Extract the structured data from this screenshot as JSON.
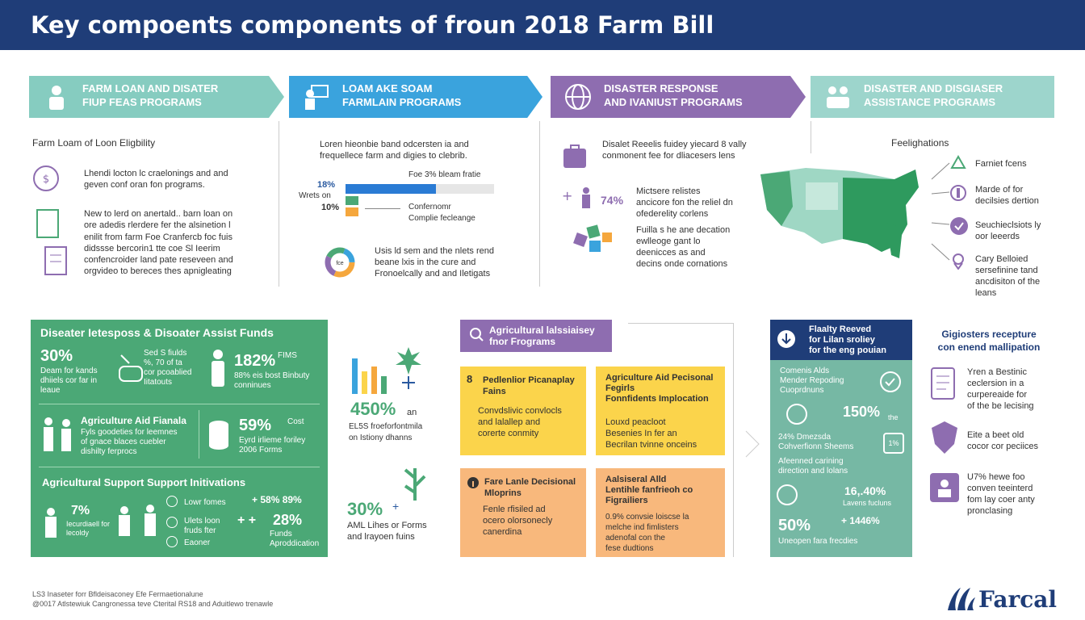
{
  "header": {
    "title": "Key compoents components of froun 2018 Farm Bill"
  },
  "chevrons": [
    {
      "l1": "FARM LOAN AND DISATER",
      "l2": "FIUP FEAS PROGRAMS",
      "icon": "farmer-icon"
    },
    {
      "l1": "LOAM AKE SOAM",
      "l2": "FARMLAIN PROGRAMS",
      "icon": "presenter-icon"
    },
    {
      "l1": "DISASTER RESPONSE",
      "l2": "AND IVANIUST PROGRAMS",
      "icon": "globe-icon"
    },
    {
      "l1": "DISASTER AND DISGIASER",
      "l2": "ASSISTANCE PROGRAMS",
      "icon": "handshake-icon"
    }
  ],
  "col1": {
    "heading": "Farm Loam of Loon Eligbility",
    "p1a": "Lhendi locton lc craelonings and and",
    "p1b": "geven conf oran fon programs.",
    "p2a": "New to lerd on anertald.. barn loan on",
    "p2b": "ore adedis rlerdere fer the alsinetion l",
    "p2c": "enilit from farm Foe Cranfercb foc fuis",
    "p2d": "didssse bercorin1 tte coe Sl Ieerim",
    "p2e": "confencroider land pate reseveen and",
    "p2f": "orgvideo to bereces thes apnigleating"
  },
  "col2": {
    "p1a": "Loren hieonbie band odcersten ia and",
    "p1b": "frequellece farm and digies to clebrib.",
    "bar_title": "Foe 3% bleam fratie",
    "pct1": "18%",
    "pct2": "Wrets on",
    "pct3": "10%",
    "note1": "Confernomr",
    "note2": "Complie fecleange",
    "p2a": "Usis ld sem and the nlets rend",
    "p2b": "beane lxis in the cure and",
    "p2c": "Fronoelcally and and Iletigats",
    "donut_label": "fce"
  },
  "col3": {
    "p1a": "Disalet Reeelis fuidey yiecard 8 vally",
    "p1b": "conmonent fee for dliacesers lens",
    "pct": "74%",
    "p2a": "Mictsere relistes",
    "p2b": "ancicore fon the reliel dn",
    "p2c": "ofederelity corlens",
    "p3a": "Fuilla s he ane decation",
    "p3b": "ewlleoge gant lo",
    "p3c": "deenicces as and",
    "p3d": "decins onde cornations"
  },
  "col4": {
    "heading": "Feelighations",
    "i1": "Farniet fcens",
    "i2a": "Marde of for",
    "i2b": "decilsies dertion",
    "i3a": "Seuchieclsiots ly",
    "i3b": "oor leeerds",
    "i4a": "Cary Belloied",
    "i4b": "sersefinine tand",
    "i4c": "ancdisiton of the",
    "i4d": "leans"
  },
  "green": {
    "title": "Diseater Ietesposs & Disoater Assist Funds",
    "s1": "30%",
    "s1a": "Deam for kands",
    "s1b": "dhiiels cor far in",
    "s1c": "leaue",
    "s2a": "Sed S fiulds",
    "s2b": "%, 70 of ta",
    "s2c": "cor pcoablied",
    "s2d": "Iitatouts",
    "s3": "182%",
    "s3x": "FIMS",
    "s3a": "88% eis bost Binbuty",
    "s3b": "conninues",
    "sub": "Agriculture Aid Fianala",
    "sub2a": "Fyls goodeties for leemnes",
    "sub2b": "of gnace blaces cuebler",
    "sub2c": "dishilty ferprocs",
    "s4": "59%",
    "s4x": "Cost",
    "s4a": "Eyrd irlieme foriley",
    "s4b": "2006 Forms",
    "sec": "Agricultural Support Support Initivations",
    "s5": "7%",
    "s5a": "Iecurdiaell for",
    "s5b": "lecoldy",
    "l1": "Lowr fomes",
    "l2a": "Ulets loon",
    "l2b": "fruds fter",
    "l3": "Eaoner",
    "s6": "+ 58% 89%",
    "s7": "28%",
    "s7a": "Funds",
    "s7b": "Aproddication"
  },
  "mid": {
    "s1": "450%",
    "s1x": "an",
    "s1a": "EL5S froeforfontmila",
    "s1b": "on Istiony dhanns",
    "s2": "30%",
    "s2x": "+",
    "s2a": "AML Lihes or Forms",
    "s2b": "and lrayoen fuins"
  },
  "agri": {
    "title": "Agricultural lalssiaisey",
    "sub": "fnor Frograms",
    "b1t1": "Pedlenlior Picanaplay",
    "b1t2": "Fains",
    "b1a": "Convdslivic convlocls",
    "b1b": "and lalallep and",
    "b1c": "corerte conmity",
    "b2t1": "Agriculture Aid Pecisonal",
    "b2t2": "Fegirls",
    "b2t3": "Fonnfidents Implocation",
    "b2a": "Louxd peacloot",
    "b2b": "Besenies In fer an",
    "b2c": "Becrilan tvinne onceins",
    "b3t1": "Fare Lanle Decisional",
    "b3t2": "Mloprins",
    "b3a": "Fenle rfisiled ad",
    "b3b": "ocero olorsonecly",
    "b3c": "canerdina",
    "b4t1": "Aalsiseral Alld",
    "b4t2": "Lentihle fanfrieoh co",
    "b4t3": "Figrailiers",
    "b4a": "0.9% convsie loiscse la",
    "b4b": "melche ind fimlisters",
    "b4c": "adenofal con the",
    "b4d": "fese dudtions"
  },
  "teal": {
    "title1": "Flaalty Reeved",
    "title2": "for Lilan sroliey",
    "title3": "for the eng pouian",
    "a1": "Comenis Alds",
    "a2": "Mender Repoding",
    "a3": "Cuoprdnuns",
    "s1": "150%",
    "s1x": "the",
    "b1": "24% Dmezsda",
    "b2": "Cohverfionn Sheems",
    "b2x": "1%",
    "c1": "Afeenned carining",
    "c2": "direction and lolans",
    "s2": "16,.40%",
    "s2a": "Lavens fucluns",
    "s3": "50%",
    "s3x": "+ 1446%",
    "d1": "Uneopen fara frecdies"
  },
  "right": {
    "title1": "Gigiosters recepture",
    "title2": "con enend mallipation",
    "r1a": "Yren a Bestinic",
    "r1b": "ceclersion in a",
    "r1c": "curpereaide for",
    "r1d": "of the be lecising",
    "r2a": "Eite a beet old",
    "r2b": "cocor cor peciices",
    "r3a": "U7% hewe foo",
    "r3b": "conven teeinterd",
    "r3c": "fom lay coer anty",
    "r3d": "pronclasing"
  },
  "footer": {
    "l1": "LS3 Inaseter forr Bfldeisaconey Efe Fermaetionalune",
    "l2": "@0017 Atlstewiuk Cangronessa teve Cterital RS18 and Aduitlewo trenawle",
    "logo": "Farcal"
  },
  "colors": {
    "header": "#1f3d78",
    "green": "#4ba876",
    "yellow": "#fbd44b",
    "orange": "#f8b87c",
    "teal": "#76b8a4",
    "purple": "#8e6db0",
    "blue": "#3aa3dd"
  }
}
